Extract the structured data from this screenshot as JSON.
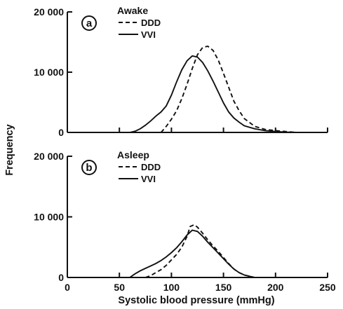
{
  "chart_data": {
    "type": "line",
    "xlabel": "Systolic blood pressure (mmHg)",
    "ylabel": "Frequency",
    "xlim": [
      0,
      250
    ],
    "x_ticks": [
      "0",
      "50",
      "100",
      "150",
      "200",
      "250"
    ],
    "legend_position": "top-left",
    "grid": false,
    "panels": [
      {
        "letter": "a",
        "title": "Awake",
        "ylim": [
          0,
          20000
        ],
        "y_ticks": [
          "0",
          "10 000",
          "20 000"
        ],
        "series": [
          {
            "name": "DDD",
            "style": "dashed",
            "x": [
              90,
              95,
              100,
              105,
              110,
              115,
              120,
              125,
              130,
              135,
              140,
              145,
              150,
              155,
              160,
              165,
              170,
              180,
              190,
              200,
              210,
              220
            ],
            "y": [
              0,
              1000,
              2200,
              3600,
              5600,
              8000,
              10600,
              12900,
              14100,
              14300,
              13600,
              12000,
              9800,
              7500,
              5200,
              3600,
              2300,
              1000,
              500,
              300,
              150,
              0
            ]
          },
          {
            "name": "VVI",
            "style": "solid",
            "x": [
              60,
              65,
              70,
              75,
              80,
              85,
              90,
              95,
              100,
              105,
              110,
              115,
              120,
              125,
              130,
              135,
              140,
              145,
              150,
              155,
              160,
              165,
              170,
              180,
              190,
              200,
              210,
              220
            ],
            "y": [
              0,
              200,
              600,
              1200,
              1900,
              2700,
              3400,
              4400,
              6200,
              8400,
              10400,
              11900,
              12700,
              12500,
              11600,
              10200,
              8500,
              6700,
              4900,
              3400,
              2400,
              1700,
              1100,
              600,
              300,
              150,
              50,
              0
            ]
          }
        ]
      },
      {
        "letter": "b",
        "title": "Asleep",
        "ylim": [
          0,
          20000
        ],
        "y_ticks": [
          "0",
          "10 000",
          "20 000"
        ],
        "series": [
          {
            "name": "DDD",
            "style": "dashed",
            "x": [
              75,
              80,
              85,
              90,
              95,
              100,
              105,
              110,
              115,
              118,
              122,
              125,
              130,
              135,
              140,
              145,
              150,
              155,
              160,
              165,
              170,
              180
            ],
            "y": [
              0,
              300,
              800,
              1300,
              2000,
              2900,
              3800,
              5000,
              6800,
              8400,
              8700,
              8300,
              7300,
              6200,
              5200,
              4300,
              3300,
              2300,
              1400,
              800,
              400,
              0
            ]
          },
          {
            "name": "VVI",
            "style": "solid",
            "x": [
              60,
              65,
              70,
              75,
              80,
              85,
              90,
              95,
              100,
              105,
              110,
              115,
              120,
              125,
              130,
              135,
              140,
              145,
              150,
              155,
              160,
              165,
              170,
              180
            ],
            "y": [
              0,
              600,
              1100,
              1500,
              1900,
              2300,
              2800,
              3400,
              4100,
              4900,
              5900,
              7000,
              7800,
              7600,
              6800,
              5800,
              4900,
              4000,
              3100,
              2200,
              1400,
              800,
              400,
              0
            ]
          }
        ]
      }
    ]
  }
}
